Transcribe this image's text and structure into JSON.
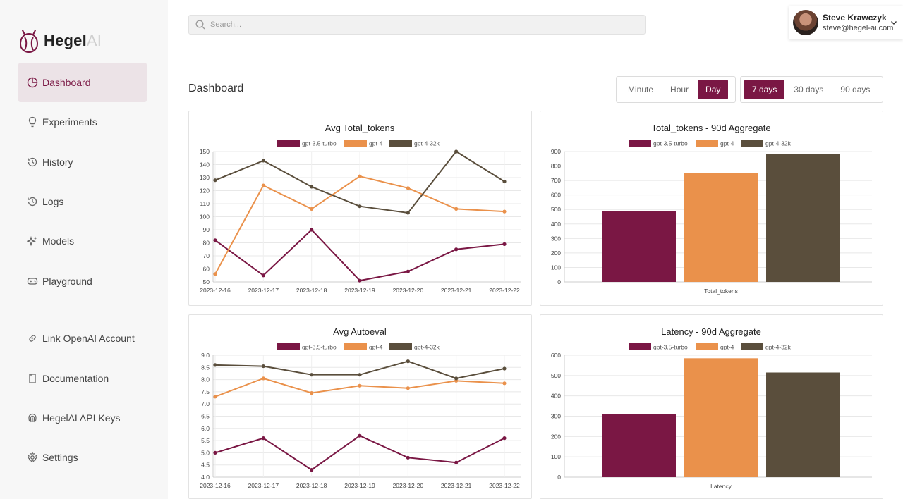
{
  "brand": {
    "name_main": "Hegel",
    "name_suffix": "AI"
  },
  "sidebar": {
    "items": [
      {
        "label": "Dashboard",
        "icon": "dashboard-icon",
        "active": true
      },
      {
        "label": "Experiments",
        "icon": "lightbulb-icon"
      },
      {
        "label": "History",
        "icon": "history-icon"
      },
      {
        "label": "Logs",
        "icon": "logs-icon"
      },
      {
        "label": "Models",
        "icon": "sparkles-icon"
      },
      {
        "label": "Playground",
        "icon": "gamepad-icon"
      }
    ],
    "bottom_items": [
      {
        "label": "Link OpenAI Account",
        "icon": "link-icon"
      },
      {
        "label": "Documentation",
        "icon": "document-icon"
      },
      {
        "label": "HegelAI API Keys",
        "icon": "fingerprint-icon"
      },
      {
        "label": "Settings",
        "icon": "gear-icon"
      }
    ]
  },
  "search": {
    "placeholder": "Search..."
  },
  "user": {
    "name": "Steve Krawczyk",
    "email": "steve@hegel-ai.com"
  },
  "page": {
    "title": "Dashboard"
  },
  "granularity": {
    "options": [
      "Minute",
      "Hour",
      "Day"
    ],
    "selected": "Day"
  },
  "range": {
    "options": [
      "7 days",
      "30 days",
      "90 days"
    ],
    "selected": "7 days"
  },
  "colors": {
    "accent": "#7a1744",
    "gpt35": "#7a1744",
    "gpt4": "#ea914b",
    "gpt432k": "#5a4e3c"
  },
  "chart_data": [
    {
      "type": "line",
      "title": "Avg Total_tokens",
      "x": [
        "2023-12-16",
        "2023-12-17",
        "2023-12-18",
        "2023-12-19",
        "2023-12-20",
        "2023-12-21",
        "2023-12-22"
      ],
      "ylim": [
        50,
        150
      ],
      "yticks": [
        "50",
        "60",
        "70",
        "80",
        "90",
        "100",
        "110",
        "120",
        "130",
        "140",
        "150"
      ],
      "series": [
        {
          "name": "gpt-3.5-turbo",
          "values": [
            82,
            55,
            90,
            51,
            58,
            75,
            79
          ]
        },
        {
          "name": "gpt-4",
          "values": [
            56,
            124,
            106,
            131,
            122,
            106,
            104
          ]
        },
        {
          "name": "gpt-4-32k",
          "values": [
            128,
            143,
            123,
            108,
            103,
            150,
            127
          ]
        }
      ],
      "legend": "top-center",
      "grid": true
    },
    {
      "type": "bar",
      "title": "Total_tokens - 90d Aggregate",
      "categories": [
        "Total_tokens"
      ],
      "ylim": [
        0,
        900
      ],
      "yticks": [
        "0",
        "100",
        "200",
        "300",
        "400",
        "500",
        "600",
        "700",
        "800",
        "900"
      ],
      "series": [
        {
          "name": "gpt-3.5-turbo",
          "values": [
            490
          ]
        },
        {
          "name": "gpt-4",
          "values": [
            750
          ]
        },
        {
          "name": "gpt-4-32k",
          "values": [
            885
          ]
        }
      ],
      "legend": "top-center",
      "grid": true
    },
    {
      "type": "line",
      "title": "Avg Autoeval",
      "x": [
        "2023-12-16",
        "2023-12-17",
        "2023-12-18",
        "2023-12-19",
        "2023-12-20",
        "2023-12-21",
        "2023-12-22"
      ],
      "ylim": [
        4.0,
        9.0
      ],
      "yticks": [
        "4.0",
        "4.5",
        "5.0",
        "5.5",
        "6.0",
        "6.5",
        "7.0",
        "7.5",
        "8.0",
        "8.5",
        "9.0"
      ],
      "series": [
        {
          "name": "gpt-3.5-turbo",
          "values": [
            5.0,
            5.6,
            4.3,
            5.7,
            4.8,
            4.6,
            5.6
          ]
        },
        {
          "name": "gpt-4",
          "values": [
            7.3,
            8.05,
            7.45,
            7.75,
            7.65,
            7.95,
            7.85
          ]
        },
        {
          "name": "gpt-4-32k",
          "values": [
            8.6,
            8.55,
            8.2,
            8.2,
            8.75,
            8.05,
            8.45
          ]
        }
      ],
      "legend": "top-center",
      "grid": true
    },
    {
      "type": "bar",
      "title": "Latency - 90d Aggregate",
      "categories": [
        "Latency"
      ],
      "ylim": [
        0,
        600
      ],
      "yticks": [
        "0",
        "100",
        "200",
        "300",
        "400",
        "500",
        "600"
      ],
      "series": [
        {
          "name": "gpt-3.5-turbo",
          "values": [
            310
          ]
        },
        {
          "name": "gpt-4",
          "values": [
            585
          ]
        },
        {
          "name": "gpt-4-32k",
          "values": [
            515
          ]
        }
      ],
      "legend": "top-center",
      "grid": true
    }
  ]
}
